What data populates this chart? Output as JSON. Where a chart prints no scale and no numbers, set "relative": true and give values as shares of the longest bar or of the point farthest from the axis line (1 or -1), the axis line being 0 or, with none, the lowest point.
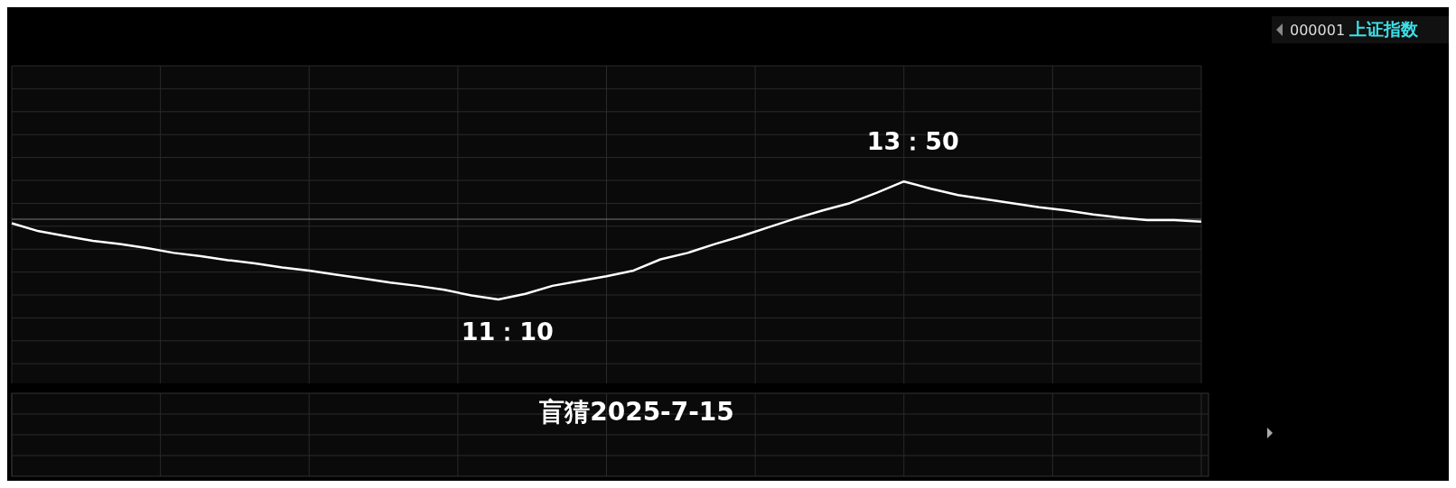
{
  "chart_data": {
    "type": "line",
    "relative": true,
    "title": "盲猜2025-7-15",
    "subtitle": "000001 上证指数",
    "color": "#ffffff",
    "grid": true,
    "ref_lines": [
      {
        "axis": "y",
        "value": 0,
        "color": "#777777"
      }
    ],
    "categories": [
      null,
      null,
      null,
      null,
      null,
      null,
      null,
      null,
      null,
      null,
      null,
      null,
      null,
      null,
      null,
      null,
      null,
      null,
      null,
      null,
      null,
      null,
      null,
      null,
      null,
      null,
      null,
      null,
      null,
      null,
      null,
      null,
      null,
      null,
      null,
      null,
      null,
      null,
      null,
      null,
      null,
      null,
      null,
      null,
      null
    ],
    "values": [
      -0.05,
      -0.15,
      -0.21,
      -0.27,
      -0.31,
      -0.36,
      -0.42,
      -0.46,
      -0.51,
      -0.55,
      -0.6,
      -0.64,
      -0.69,
      -0.74,
      -0.79,
      -0.83,
      -0.88,
      -0.95,
      -1,
      -0.93,
      -0.83,
      -0.77,
      -0.71,
      -0.64,
      -0.5,
      -0.42,
      -0.31,
      -0.21,
      -0.1,
      0.01,
      0.11,
      0.2,
      0.33,
      0.47,
      0.38,
      0.3,
      0.25,
      0.2,
      0.15,
      0.11,
      0.06,
      0.02,
      -0.01,
      -0.01,
      -0.03
    ],
    "annotations": [
      {
        "text": "11：10",
        "y": -1
      },
      {
        "text": "13：50",
        "y": 0.47
      }
    ]
  }
}
